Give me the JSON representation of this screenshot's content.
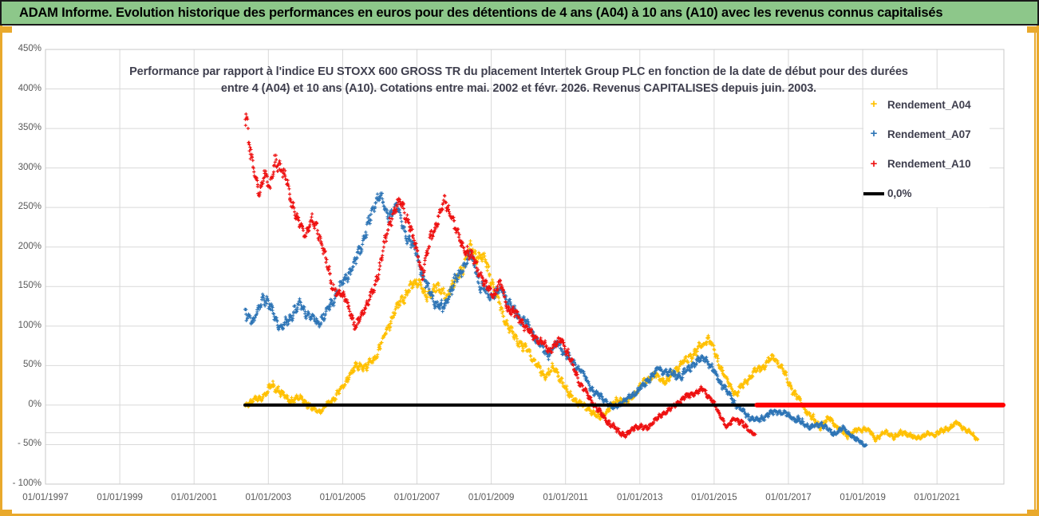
{
  "header": {
    "title": "ADAM Informe. Evolution historique des performances en euros pour des détentions de 4 ans (A04) à 10 ans (A10) avec les revenus connus capitalisés"
  },
  "colors": {
    "header_green": "#8dc78a",
    "frame_gold": "#e9a92c",
    "grid": "#d9d9d9",
    "plot_border": "#c9c9c9",
    "axis_text": "#595959",
    "title_text": "#3f3f4e"
  },
  "chart": {
    "title_line1": "Performance par rapport à l'indice EU STOXX 600 GROSS TR  du placement Intertek Group PLC en fonction de la date de début pour des durées",
    "title_line2": "entre 4 (A04) et 10 ans (A10). Cotations entre mai. 2002 et févr. 2026. Revenus CAPITALISES depuis juin. 2003."
  },
  "chart_data": {
    "type": "scatter",
    "title": "Performance par rapport à l'indice EU STOXX 600 GROSS TR du placement Intertek Group PLC en fonction de la date de début pour des durées entre 4 (A04) et 10 ans (A10). Cotations entre mai. 2002 et févr. 2026. Revenus CAPITALISES depuis juin. 2003.",
    "x_axis": {
      "type": "date-start-of-holding",
      "tick_labels": [
        "01/01/1997",
        "01/01/1999",
        "01/01/2001",
        "01/01/2003",
        "01/01/2005",
        "01/01/2007",
        "01/01/2009",
        "01/01/2011",
        "01/01/2013",
        "01/01/2015",
        "01/01/2017",
        "01/01/2019",
        "01/01/2021"
      ],
      "tick_years": [
        1997,
        1999,
        2001,
        2003,
        2005,
        2007,
        2009,
        2011,
        2013,
        2015,
        2017,
        2019,
        2021
      ],
      "range_years": [
        1997,
        2022.8
      ]
    },
    "y_axis": {
      "unit": "%",
      "tick_labels": [
        "450%",
        "400%",
        "350%",
        "300%",
        "250%",
        "200%",
        "150%",
        "100%",
        "50%",
        "0%",
        "- 50%",
        "- 100%"
      ],
      "tick_values": [
        450,
        400,
        350,
        300,
        250,
        200,
        150,
        100,
        50,
        0,
        -50,
        -100
      ],
      "range": [
        -100,
        450
      ],
      "extra_gridline_value": -35,
      "grid": true
    },
    "legend_position": "right",
    "series": [
      {
        "name": "Rendement_A04",
        "color": "#FFC000",
        "marker": "+",
        "points": [
          [
            2002.37,
            0,
            6
          ],
          [
            2002.6,
            5,
            5
          ],
          [
            2002.9,
            12,
            6
          ],
          [
            2003.1,
            26,
            7
          ],
          [
            2003.35,
            14,
            6
          ],
          [
            2003.6,
            6,
            5
          ],
          [
            2003.9,
            9,
            5
          ],
          [
            2004.15,
            -4,
            5
          ],
          [
            2004.4,
            -8,
            4
          ],
          [
            2004.65,
            4,
            5
          ],
          [
            2004.9,
            16,
            6
          ],
          [
            2005.15,
            36,
            7
          ],
          [
            2005.4,
            50,
            7
          ],
          [
            2005.65,
            48,
            6
          ],
          [
            2005.9,
            62,
            7
          ],
          [
            2006.15,
            90,
            8
          ],
          [
            2006.4,
            118,
            9
          ],
          [
            2006.65,
            138,
            9
          ],
          [
            2006.9,
            152,
            9
          ],
          [
            2007.05,
            158,
            8
          ],
          [
            2007.25,
            133,
            9
          ],
          [
            2007.5,
            152,
            9
          ],
          [
            2007.75,
            138,
            9
          ],
          [
            2008.0,
            152,
            9
          ],
          [
            2008.25,
            175,
            10
          ],
          [
            2008.45,
            200,
            10
          ],
          [
            2008.6,
            188,
            9
          ],
          [
            2008.85,
            183,
            9
          ],
          [
            2009.1,
            142,
            10
          ],
          [
            2009.35,
            110,
            9
          ],
          [
            2009.6,
            88,
            8
          ],
          [
            2009.9,
            72,
            8
          ],
          [
            2010.15,
            58,
            7
          ],
          [
            2010.4,
            36,
            7
          ],
          [
            2010.65,
            46,
            7
          ],
          [
            2010.9,
            32,
            6
          ],
          [
            2011.1,
            12,
            6
          ],
          [
            2011.4,
            2,
            5
          ],
          [
            2011.7,
            -8,
            5
          ],
          [
            2011.9,
            -16,
            5
          ],
          [
            2012.15,
            -6,
            5
          ],
          [
            2012.4,
            8,
            5
          ],
          [
            2012.65,
            4,
            5
          ],
          [
            2012.9,
            16,
            5
          ],
          [
            2013.15,
            32,
            6
          ],
          [
            2013.45,
            38,
            6
          ],
          [
            2013.7,
            28,
            6
          ],
          [
            2013.95,
            44,
            6
          ],
          [
            2014.2,
            56,
            7
          ],
          [
            2014.5,
            66,
            7
          ],
          [
            2014.85,
            86,
            7
          ],
          [
            2015.1,
            56,
            7
          ],
          [
            2015.35,
            30,
            6
          ],
          [
            2015.6,
            14,
            6
          ],
          [
            2015.85,
            30,
            6
          ],
          [
            2016.1,
            42,
            6
          ],
          [
            2016.35,
            50,
            6
          ],
          [
            2016.6,
            62,
            6
          ],
          [
            2016.85,
            44,
            6
          ],
          [
            2017.1,
            20,
            6
          ],
          [
            2017.35,
            2,
            5
          ],
          [
            2017.6,
            -14,
            5
          ],
          [
            2017.85,
            -28,
            5
          ],
          [
            2018.1,
            -16,
            5
          ],
          [
            2018.35,
            -30,
            4
          ],
          [
            2018.6,
            -38,
            4
          ],
          [
            2018.85,
            -32,
            4
          ],
          [
            2019.1,
            -30,
            4
          ],
          [
            2019.35,
            -42,
            4
          ],
          [
            2019.6,
            -34,
            4
          ],
          [
            2019.85,
            -40,
            4
          ],
          [
            2020.1,
            -34,
            4
          ],
          [
            2020.4,
            -42,
            4
          ],
          [
            2020.7,
            -38,
            4
          ],
          [
            2021.0,
            -36,
            4
          ],
          [
            2021.3,
            -30,
            4
          ],
          [
            2021.55,
            -22,
            4
          ],
          [
            2021.8,
            -32,
            4
          ],
          [
            2022.1,
            -43,
            3
          ]
        ]
      },
      {
        "name": "Rendement_A07",
        "color": "#2E75B6",
        "marker": "+",
        "points": [
          [
            2002.37,
            122,
            10
          ],
          [
            2002.6,
            103,
            8
          ],
          [
            2002.85,
            138,
            9
          ],
          [
            2003.1,
            118,
            9
          ],
          [
            2003.35,
            96,
            8
          ],
          [
            2003.6,
            112,
            8
          ],
          [
            2003.85,
            128,
            8
          ],
          [
            2004.1,
            112,
            8
          ],
          [
            2004.35,
            104,
            7
          ],
          [
            2004.6,
            120,
            8
          ],
          [
            2004.85,
            142,
            8
          ],
          [
            2005.1,
            162,
            8
          ],
          [
            2005.35,
            182,
            9
          ],
          [
            2005.6,
            215,
            10
          ],
          [
            2005.85,
            252,
            10
          ],
          [
            2006.0,
            268,
            8
          ],
          [
            2006.2,
            238,
            9
          ],
          [
            2006.45,
            253,
            9
          ],
          [
            2006.7,
            215,
            9
          ],
          [
            2006.95,
            198,
            9
          ],
          [
            2007.2,
            158,
            9
          ],
          [
            2007.45,
            132,
            8
          ],
          [
            2007.7,
            122,
            8
          ],
          [
            2007.95,
            148,
            9
          ],
          [
            2008.2,
            172,
            9
          ],
          [
            2008.45,
            192,
            9
          ],
          [
            2008.7,
            150,
            9
          ],
          [
            2009.0,
            138,
            9
          ],
          [
            2009.3,
            145,
            8
          ],
          [
            2009.6,
            118,
            8
          ],
          [
            2009.9,
            108,
            8
          ],
          [
            2010.2,
            84,
            7
          ],
          [
            2010.5,
            64,
            7
          ],
          [
            2010.8,
            78,
            7
          ],
          [
            2011.1,
            58,
            7
          ],
          [
            2011.4,
            44,
            6
          ],
          [
            2011.7,
            20,
            6
          ],
          [
            2012.0,
            8,
            5
          ],
          [
            2012.3,
            -4,
            5
          ],
          [
            2012.6,
            6,
            5
          ],
          [
            2012.9,
            16,
            5
          ],
          [
            2013.2,
            30,
            6
          ],
          [
            2013.5,
            46,
            6
          ],
          [
            2013.8,
            40,
            6
          ],
          [
            2014.1,
            36,
            6
          ],
          [
            2014.4,
            50,
            6
          ],
          [
            2014.75,
            60,
            6
          ],
          [
            2015.0,
            42,
            6
          ],
          [
            2015.3,
            20,
            5
          ],
          [
            2015.6,
            0,
            5
          ],
          [
            2015.9,
            -14,
            5
          ],
          [
            2016.15,
            -20,
            5
          ],
          [
            2016.45,
            -12,
            5
          ],
          [
            2016.7,
            -8,
            5
          ],
          [
            2017.0,
            -13,
            5
          ],
          [
            2017.3,
            -20,
            5
          ],
          [
            2017.6,
            -28,
            4
          ],
          [
            2017.9,
            -24,
            4
          ],
          [
            2018.2,
            -36,
            4
          ],
          [
            2018.5,
            -30,
            4
          ],
          [
            2018.8,
            -43,
            4
          ],
          [
            2019.1,
            -51,
            3
          ]
        ]
      },
      {
        "name": "Rendement_A10",
        "color": "#EE1111",
        "marker": "+",
        "points": [
          [
            2002.37,
            368,
            22
          ],
          [
            2002.5,
            330,
            15
          ],
          [
            2002.62,
            292,
            12
          ],
          [
            2002.75,
            266,
            10
          ],
          [
            2002.9,
            296,
            12
          ],
          [
            2003.05,
            272,
            10
          ],
          [
            2003.2,
            312,
            14
          ],
          [
            2003.35,
            298,
            10
          ],
          [
            2003.5,
            280,
            10
          ],
          [
            2003.65,
            252,
            10
          ],
          [
            2003.8,
            232,
            9
          ],
          [
            2004.0,
            216,
            9
          ],
          [
            2004.15,
            234,
            9
          ],
          [
            2004.3,
            224,
            9
          ],
          [
            2004.5,
            196,
            9
          ],
          [
            2004.7,
            152,
            9
          ],
          [
            2004.9,
            140,
            8
          ],
          [
            2005.1,
            134,
            8
          ],
          [
            2005.35,
            97,
            8
          ],
          [
            2005.6,
            124,
            8
          ],
          [
            2005.85,
            146,
            9
          ],
          [
            2006.1,
            198,
            10
          ],
          [
            2006.35,
            244,
            10
          ],
          [
            2006.55,
            258,
            10
          ],
          [
            2006.8,
            228,
            10
          ],
          [
            2007.0,
            194,
            9
          ],
          [
            2007.15,
            166,
            9
          ],
          [
            2007.35,
            208,
            10
          ],
          [
            2007.55,
            234,
            10
          ],
          [
            2007.75,
            258,
            11
          ],
          [
            2007.9,
            244,
            10
          ],
          [
            2008.1,
            214,
            10
          ],
          [
            2008.3,
            196,
            9
          ],
          [
            2008.55,
            186,
            9
          ],
          [
            2008.8,
            154,
            9
          ],
          [
            2009.05,
            140,
            9
          ],
          [
            2009.25,
            154,
            8
          ],
          [
            2009.45,
            122,
            8
          ],
          [
            2009.7,
            114,
            8
          ],
          [
            2010.0,
            94,
            7
          ],
          [
            2010.3,
            80,
            7
          ],
          [
            2010.6,
            70,
            7
          ],
          [
            2010.9,
            84,
            7
          ],
          [
            2011.15,
            54,
            7
          ],
          [
            2011.4,
            26,
            6
          ],
          [
            2011.65,
            10,
            5
          ],
          [
            2011.9,
            -8,
            5
          ],
          [
            2012.15,
            -22,
            5
          ],
          [
            2012.4,
            -33,
            5
          ],
          [
            2012.65,
            -38,
            4
          ],
          [
            2012.9,
            -26,
            4
          ],
          [
            2013.15,
            -30,
            4
          ],
          [
            2013.4,
            -20,
            4
          ],
          [
            2013.65,
            -10,
            4
          ],
          [
            2013.9,
            -2,
            4
          ],
          [
            2014.15,
            8,
            4
          ],
          [
            2014.45,
            15,
            4
          ],
          [
            2014.7,
            20,
            4
          ],
          [
            2014.95,
            6,
            4
          ],
          [
            2015.15,
            -12,
            4
          ],
          [
            2015.35,
            -28,
            4
          ],
          [
            2015.55,
            -16,
            4
          ],
          [
            2015.75,
            -23,
            4
          ],
          [
            2015.95,
            -32,
            4
          ],
          [
            2016.1,
            -38,
            3
          ]
        ]
      }
    ],
    "reference_lines": [
      {
        "label": "0,0%",
        "color": "#000000",
        "value": 0,
        "from_year": 2002.37,
        "to_year": 2016.15,
        "width": 4,
        "in_legend": true
      },
      {
        "label": "",
        "color": "#FF0000",
        "value": 0,
        "from_year": 2016.15,
        "to_year": 2022.78,
        "width": 6,
        "in_legend": false
      }
    ]
  }
}
